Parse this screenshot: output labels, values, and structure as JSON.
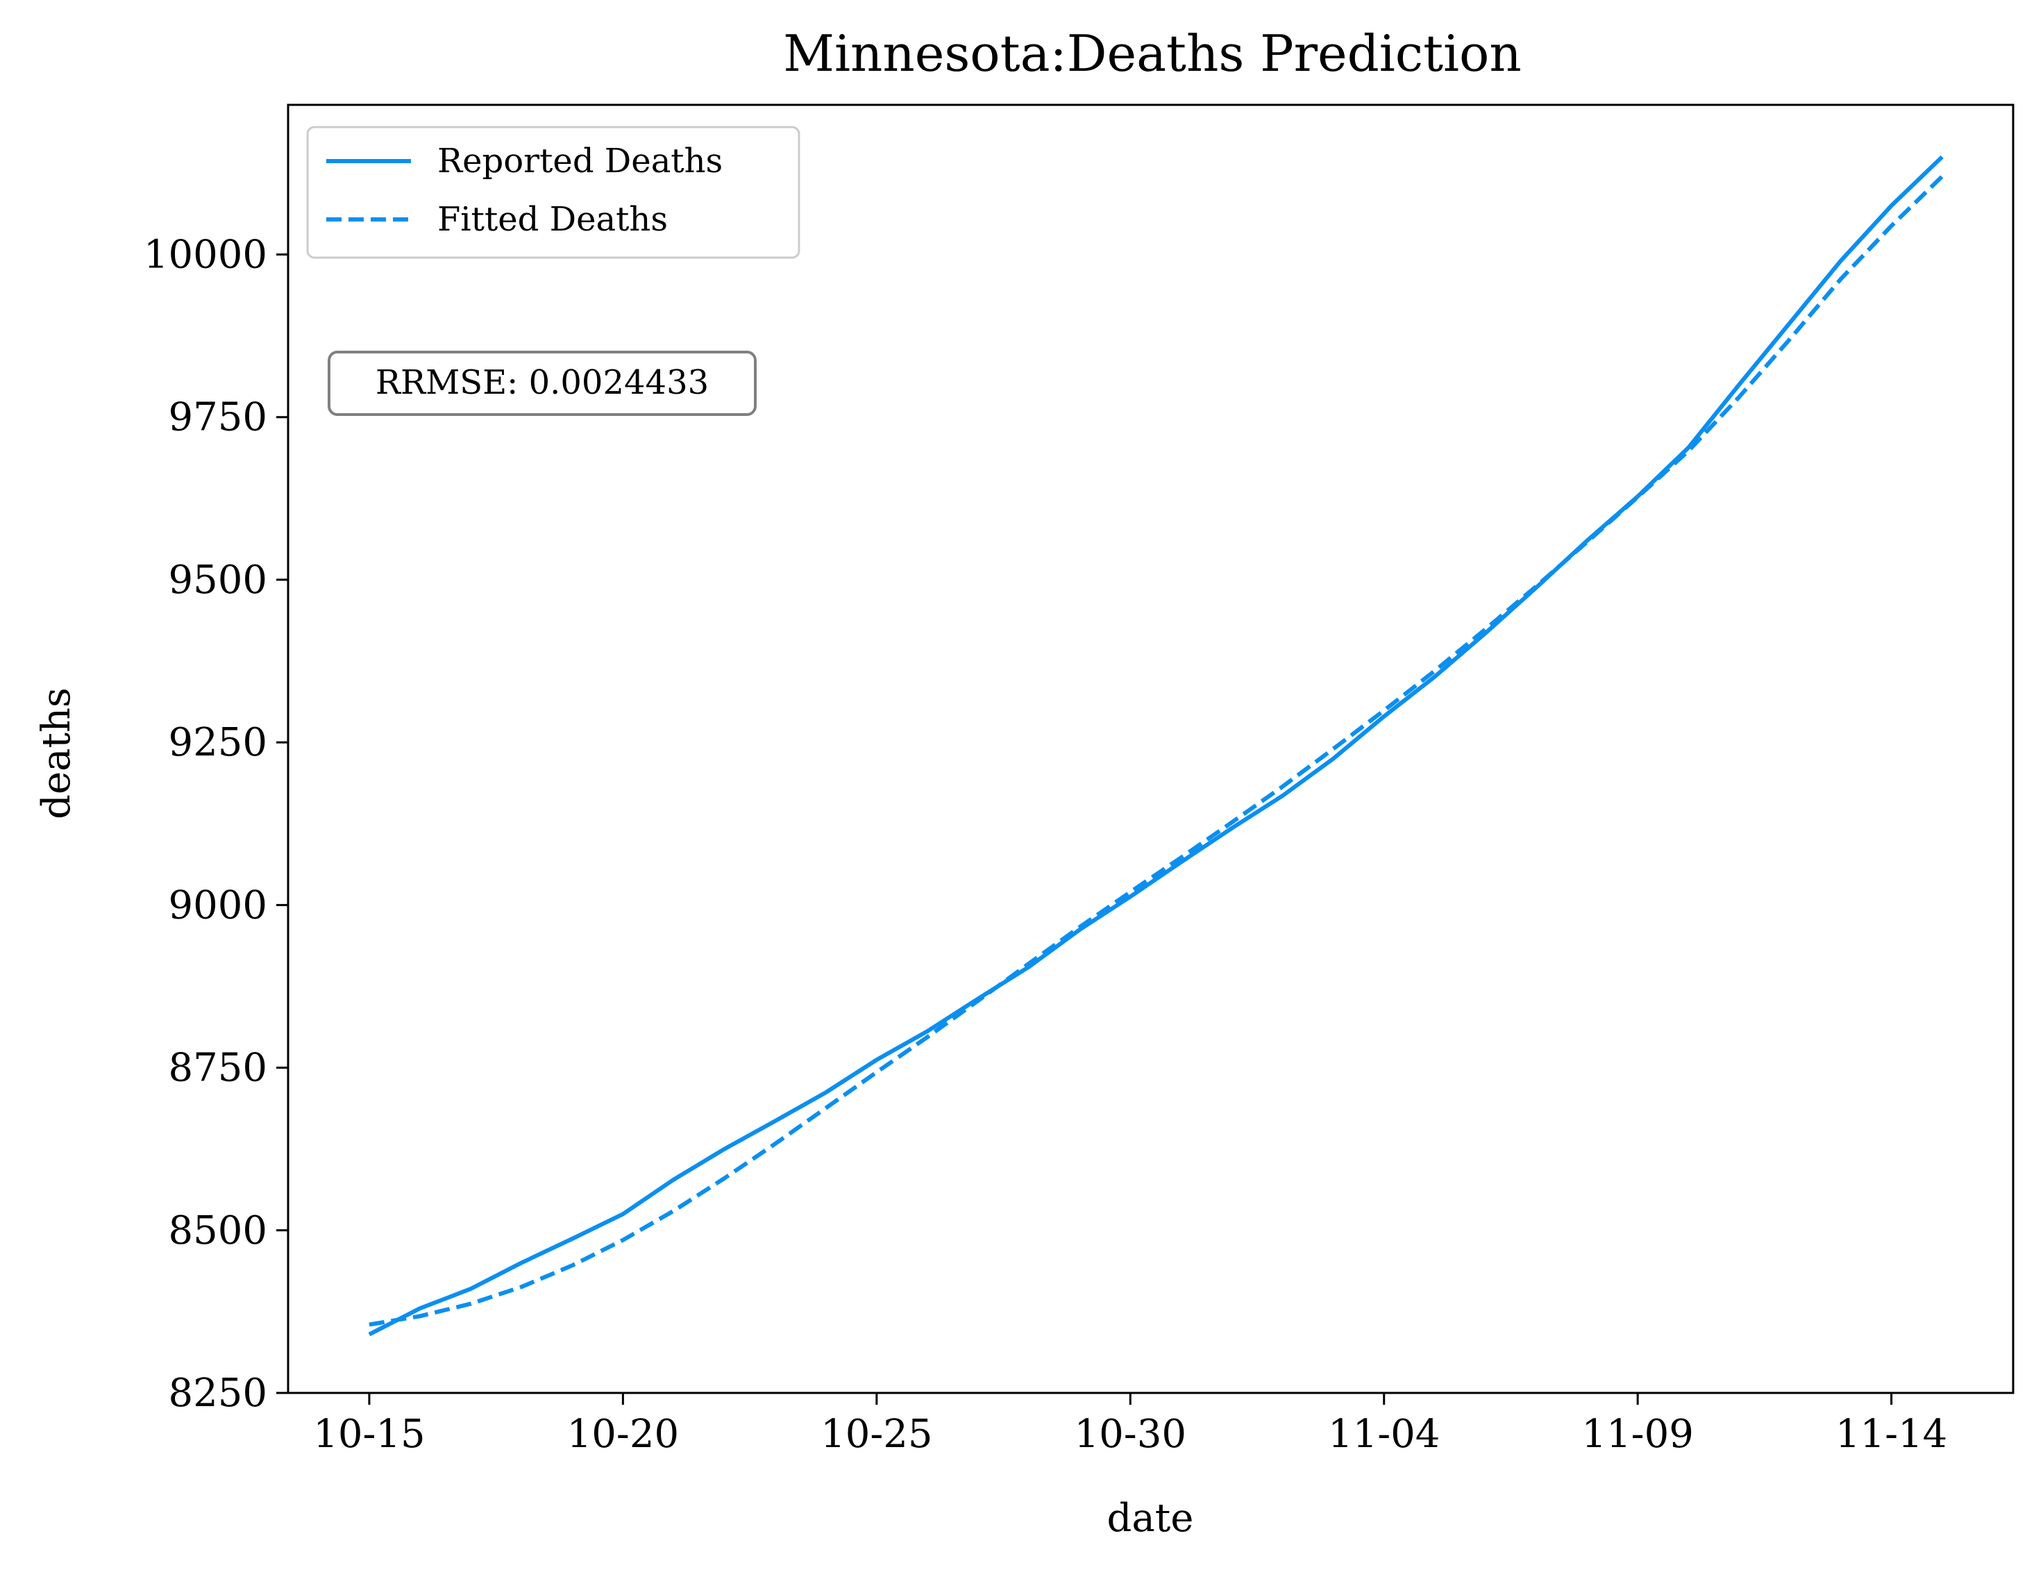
{
  "chart_data": {
    "type": "line",
    "title": "Minnesota:Deaths Prediction",
    "xlabel": "date",
    "ylabel": "deaths",
    "x_tick_labels": [
      "10-15",
      "10-20",
      "10-25",
      "10-30",
      "11-04",
      "11-09",
      "11-14"
    ],
    "y_tick_labels": [
      "8250",
      "8500",
      "8750",
      "9000",
      "9250",
      "9500",
      "9750",
      "10000"
    ],
    "ylim": [
      8250,
      10230
    ],
    "x_range_days": [
      -1.6,
      32.4
    ],
    "x_start_date": "10-15",
    "grid": false,
    "legend_position": "upper-left",
    "annotation": "RRMSE: 0.0024433",
    "colors": {
      "series": "#0a8ff0"
    },
    "series": [
      {
        "name": "Reported Deaths",
        "style": "solid",
        "values": [
          8340,
          8380,
          8410,
          8450,
          8487,
          8525,
          8578,
          8625,
          8668,
          8712,
          8762,
          8806,
          8856,
          8905,
          8962,
          9013,
          9066,
          9118,
          9168,
          9225,
          9290,
          9351,
          9418,
          9488,
          9560,
          9628,
          9703,
          9800,
          9895,
          9990,
          10075,
          10150
        ]
      },
      {
        "name": "Fitted Deaths",
        "style": "dashed",
        "values": [
          8355,
          8368,
          8387,
          8413,
          8446,
          8485,
          8530,
          8580,
          8633,
          8688,
          8743,
          8797,
          8853,
          8910,
          8966,
          9020,
          9073,
          9127,
          9182,
          9240,
          9299,
          9360,
          9424,
          9490,
          9558,
          9627,
          9698,
          9781,
          9870,
          9962,
          10044,
          10120
        ]
      }
    ]
  }
}
